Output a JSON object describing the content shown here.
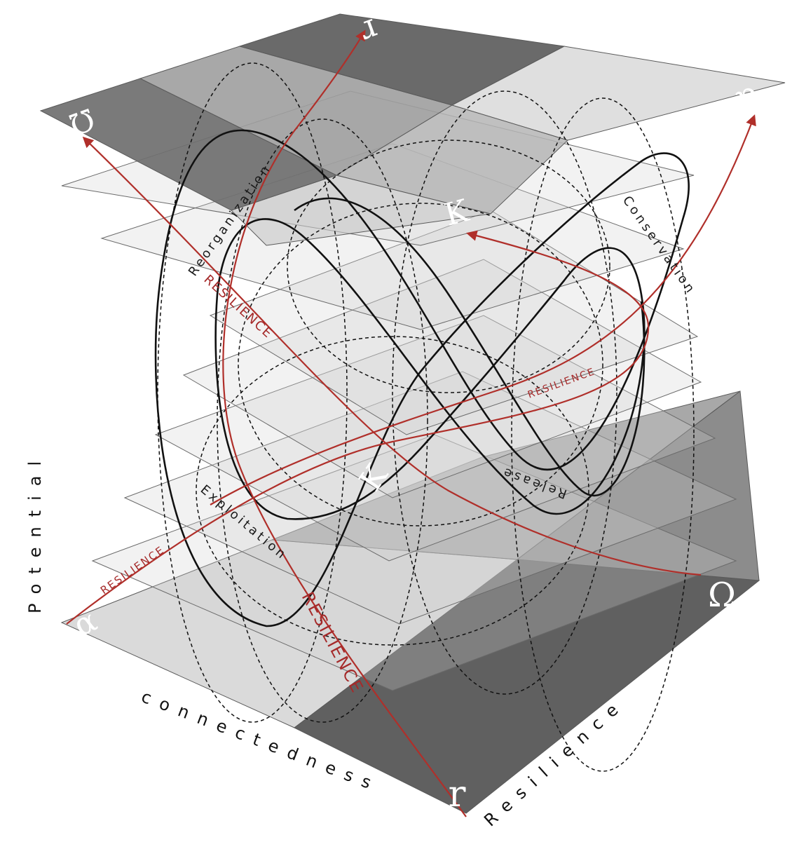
{
  "diagram": {
    "axes": {
      "vertical": "Potential",
      "left_depth": "connectedness",
      "right_depth": "Resilience"
    },
    "phases": {
      "reorganization": "Reorganization",
      "conservation": "Conservation",
      "release": "Release",
      "exploitation": "Exploitation"
    },
    "resilience_label_small": "RESILIENCE",
    "resilience_label_large": "RESILIENCE",
    "corners": {
      "top_front": "r",
      "top_left": "Ω",
      "top_right": "α",
      "top_middle": "K",
      "bottom_left": "α",
      "bottom_right": "Ω",
      "bottom_front": "r",
      "bottom_middle": "K"
    },
    "colors": {
      "resilience_arrows": "#b02f2a",
      "cycle_loops": "#111111",
      "dark_quadrant": "#5f5f5f",
      "light_quadrant": "#d9d9d9"
    }
  }
}
